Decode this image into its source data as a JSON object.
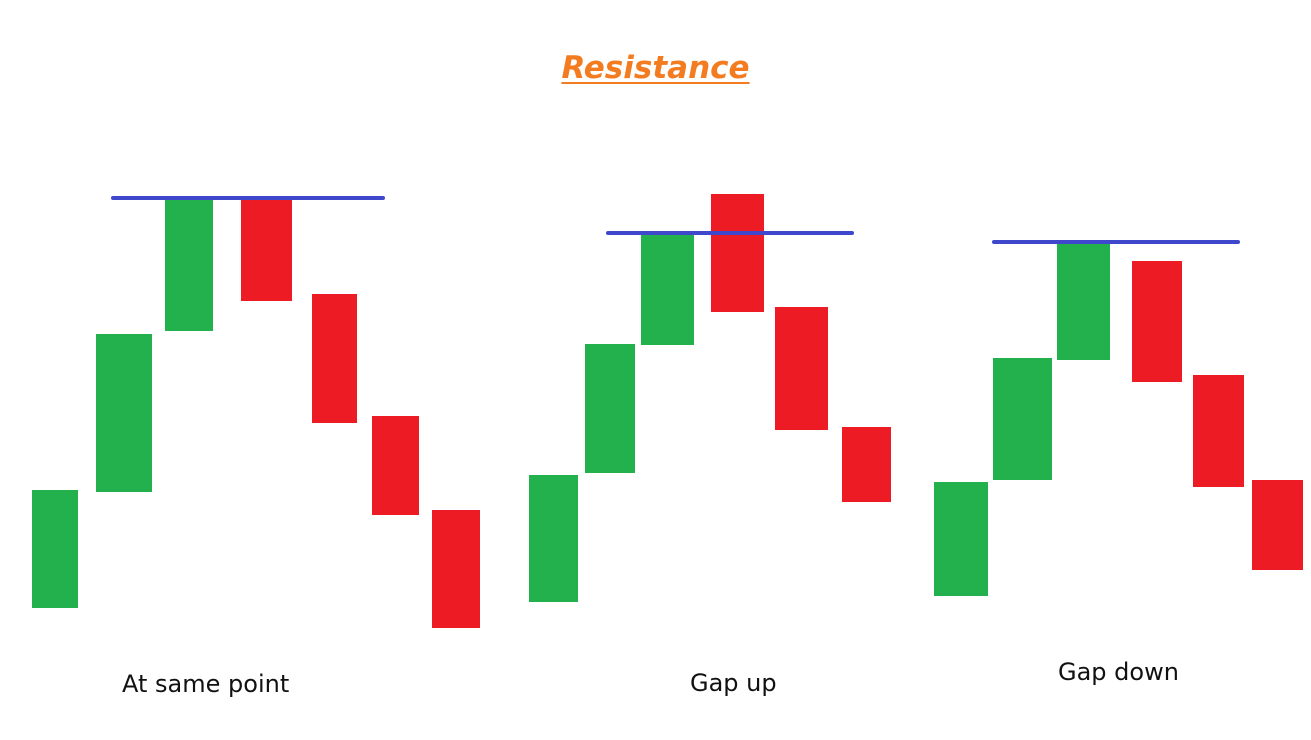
{
  "title": "Resistance",
  "colors": {
    "title": "#f47c20",
    "bullish": "#22b14c",
    "bearish": "#ed1c24",
    "resistance_line": "#3f48cc",
    "background": "#ffffff"
  },
  "panels": [
    {
      "caption": "At same point",
      "candles": [
        "bullish",
        "bullish",
        "bullish",
        "bearish",
        "bearish",
        "bearish",
        "bearish"
      ],
      "resistance_line": true
    },
    {
      "caption": "Gap up",
      "candles": [
        "bullish",
        "bullish",
        "bullish",
        "bearish",
        "bearish",
        "bearish"
      ],
      "resistance_line": true
    },
    {
      "caption": "Gap down",
      "candles": [
        "bullish",
        "bullish",
        "bullish",
        "bearish",
        "bearish",
        "bearish"
      ],
      "resistance_line": true
    }
  ]
}
